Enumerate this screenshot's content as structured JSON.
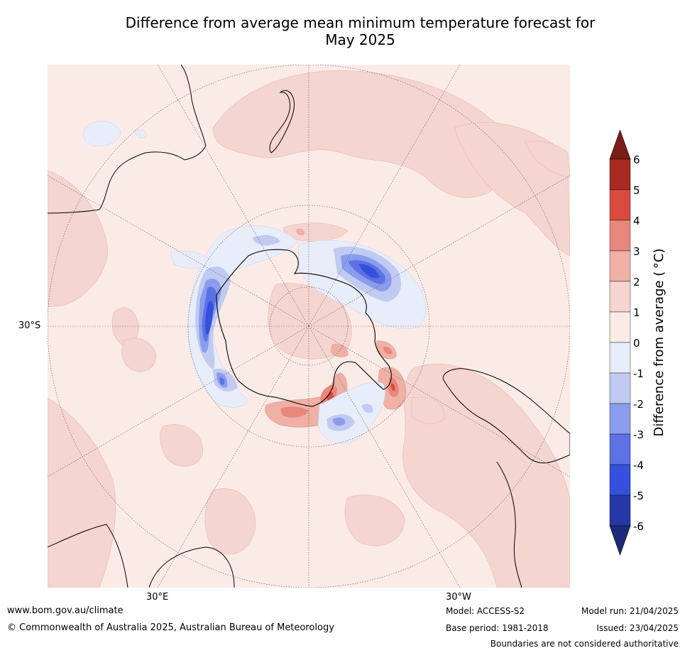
{
  "title": {
    "line1": "Difference from average mean minimum temperature forecast for",
    "line2": "May 2025"
  },
  "map": {
    "projection": "south-polar-stereographic",
    "graticule_labels": {
      "lat_30s": "30°S",
      "lon_30e": "30°E",
      "lon_30w": "30°W"
    }
  },
  "colorbar": {
    "label": "Difference from average ( °C)",
    "ticks": [
      "6",
      "5",
      "4",
      "3",
      "2",
      "1",
      "0",
      "-1",
      "-2",
      "-3",
      "-4",
      "-5",
      "-6"
    ],
    "levels": [
      {
        "range": "> 6",
        "color": "#7a1c17"
      },
      {
        "range": "5 to 6",
        "color": "#a82a22"
      },
      {
        "range": "4 to 5",
        "color": "#d94a3f"
      },
      {
        "range": "3 to 4",
        "color": "#e8877c"
      },
      {
        "range": "2 to 3",
        "color": "#efb0a6"
      },
      {
        "range": "1 to 2",
        "color": "#f4d5d0"
      },
      {
        "range": "0 to 1",
        "color": "#fbebe7"
      },
      {
        "range": "-1 to 0",
        "color": "#e8edfa"
      },
      {
        "range": "-2 to -1",
        "color": "#c1cbf2"
      },
      {
        "range": "-3 to -2",
        "color": "#8a9ded"
      },
      {
        "range": "-4 to -3",
        "color": "#5c71e3"
      },
      {
        "range": "-5 to -4",
        "color": "#3550dd"
      },
      {
        "range": "-6 to -5",
        "color": "#2638a6"
      },
      {
        "range": "< -6",
        "color": "#1d2a7a"
      }
    ]
  },
  "footer": {
    "website": "www.bom.gov.au/climate",
    "copyright": "© Commonwealth of Australia 2025, Australian Bureau of Meteorology",
    "model": "Model: ACCESS-S2",
    "base_period": "Base period: 1981-2018",
    "model_run": "Model run: 21/04/2025",
    "issued": "Issued: 23/04/2025",
    "disclaimer": "Boundaries are not considered authoritative"
  }
}
